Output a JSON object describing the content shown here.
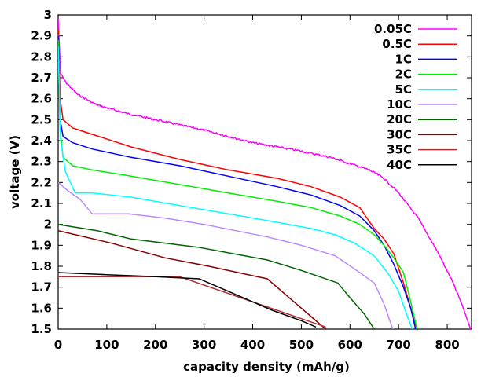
{
  "chart_data": {
    "type": "line",
    "title": "",
    "xlabel": "capacity density (mAh/g)",
    "ylabel": "voltage (V)",
    "xlim": [
      0,
      850
    ],
    "ylim": [
      1.5,
      3
    ],
    "xticks": [
      0,
      100,
      200,
      300,
      400,
      500,
      600,
      700,
      800
    ],
    "yticks": [
      1.5,
      1.6,
      1.7,
      1.8,
      1.9,
      2,
      2.1,
      2.2,
      2.3,
      2.4,
      2.5,
      2.6,
      2.7,
      2.8,
      2.9,
      3
    ],
    "xtick_labels": [
      "0",
      "100",
      "200",
      "300",
      "400",
      "500",
      "600",
      "700",
      "800"
    ],
    "ytick_labels": [
      "1.5",
      "1.6",
      "1.7",
      "1.8",
      "1.9",
      "2",
      "2.1",
      "2.2",
      "2.3",
      "2.4",
      "2.5",
      "2.6",
      "2.7",
      "2.8",
      "2.9",
      "3"
    ],
    "legend_position": "top-right",
    "grid": false,
    "series": [
      {
        "name": "0.05C",
        "color": "#ff00ff",
        "noisy": true,
        "points": [
          [
            0,
            2.98
          ],
          [
            5,
            2.72
          ],
          [
            15,
            2.68
          ],
          [
            40,
            2.62
          ],
          [
            80,
            2.57
          ],
          [
            140,
            2.53
          ],
          [
            200,
            2.5
          ],
          [
            300,
            2.45
          ],
          [
            400,
            2.39
          ],
          [
            450,
            2.37
          ],
          [
            500,
            2.35
          ],
          [
            560,
            2.32
          ],
          [
            600,
            2.29
          ],
          [
            640,
            2.26
          ],
          [
            670,
            2.22
          ],
          [
            700,
            2.15
          ],
          [
            740,
            2.03
          ],
          [
            780,
            1.87
          ],
          [
            810,
            1.73
          ],
          [
            830,
            1.62
          ],
          [
            848,
            1.5
          ]
        ]
      },
      {
        "name": "0.5C",
        "color": "#ff0000",
        "points": [
          [
            0,
            2.93
          ],
          [
            4,
            2.6
          ],
          [
            10,
            2.5
          ],
          [
            30,
            2.46
          ],
          [
            70,
            2.43
          ],
          [
            150,
            2.37
          ],
          [
            250,
            2.31
          ],
          [
            350,
            2.26
          ],
          [
            450,
            2.22
          ],
          [
            520,
            2.18
          ],
          [
            580,
            2.13
          ],
          [
            620,
            2.08
          ],
          [
            650,
            1.98
          ],
          [
            670,
            1.93
          ],
          [
            690,
            1.86
          ],
          [
            710,
            1.72
          ],
          [
            725,
            1.6
          ],
          [
            738,
            1.5
          ]
        ]
      },
      {
        "name": "1C",
        "color": "#0000ff",
        "points": [
          [
            0,
            2.9
          ],
          [
            4,
            2.5
          ],
          [
            10,
            2.42
          ],
          [
            30,
            2.39
          ],
          [
            70,
            2.36
          ],
          [
            150,
            2.32
          ],
          [
            250,
            2.28
          ],
          [
            350,
            2.23
          ],
          [
            450,
            2.18
          ],
          [
            520,
            2.14
          ],
          [
            580,
            2.09
          ],
          [
            620,
            2.04
          ],
          [
            650,
            1.97
          ],
          [
            670,
            1.9
          ],
          [
            690,
            1.81
          ],
          [
            710,
            1.7
          ],
          [
            725,
            1.6
          ],
          [
            735,
            1.5
          ]
        ]
      },
      {
        "name": "2C",
        "color": "#00ee00",
        "points": [
          [
            0,
            2.88
          ],
          [
            4,
            2.45
          ],
          [
            10,
            2.32
          ],
          [
            30,
            2.28
          ],
          [
            70,
            2.26
          ],
          [
            150,
            2.23
          ],
          [
            250,
            2.19
          ],
          [
            350,
            2.15
          ],
          [
            450,
            2.11
          ],
          [
            520,
            2.08
          ],
          [
            580,
            2.04
          ],
          [
            620,
            2.0
          ],
          [
            650,
            1.95
          ],
          [
            670,
            1.9
          ],
          [
            690,
            1.84
          ],
          [
            710,
            1.77
          ],
          [
            725,
            1.63
          ],
          [
            738,
            1.5
          ]
        ]
      },
      {
        "name": "5C",
        "color": "#00ffff",
        "points": [
          [
            0,
            2.85
          ],
          [
            5,
            2.4
          ],
          [
            15,
            2.25
          ],
          [
            35,
            2.15
          ],
          [
            70,
            2.15
          ],
          [
            150,
            2.13
          ],
          [
            250,
            2.09
          ],
          [
            350,
            2.05
          ],
          [
            450,
            2.01
          ],
          [
            520,
            1.98
          ],
          [
            570,
            1.95
          ],
          [
            610,
            1.91
          ],
          [
            650,
            1.85
          ],
          [
            680,
            1.76
          ],
          [
            700,
            1.68
          ],
          [
            715,
            1.58
          ],
          [
            728,
            1.5
          ]
        ]
      },
      {
        "name": "10C",
        "color": "#bb88ff",
        "points": [
          [
            0,
            2.2
          ],
          [
            20,
            2.16
          ],
          [
            45,
            2.12
          ],
          [
            70,
            2.05
          ],
          [
            145,
            2.05
          ],
          [
            220,
            2.03
          ],
          [
            300,
            2.0
          ],
          [
            430,
            1.94
          ],
          [
            500,
            1.9
          ],
          [
            570,
            1.85
          ],
          [
            620,
            1.77
          ],
          [
            650,
            1.72
          ],
          [
            670,
            1.62
          ],
          [
            688,
            1.5
          ]
        ]
      },
      {
        "name": "20C",
        "color": "#006400",
        "points": [
          [
            0,
            2.0
          ],
          [
            80,
            1.97
          ],
          [
            150,
            1.93
          ],
          [
            290,
            1.89
          ],
          [
            430,
            1.83
          ],
          [
            500,
            1.78
          ],
          [
            575,
            1.72
          ],
          [
            600,
            1.65
          ],
          [
            630,
            1.57
          ],
          [
            650,
            1.5
          ]
        ]
      },
      {
        "name": "30C",
        "color": "#880000",
        "points": [
          [
            0,
            1.97
          ],
          [
            110,
            1.91
          ],
          [
            220,
            1.84
          ],
          [
            310,
            1.8
          ],
          [
            430,
            1.74
          ],
          [
            480,
            1.64
          ],
          [
            520,
            1.56
          ],
          [
            550,
            1.5
          ]
        ]
      },
      {
        "name": "35C",
        "color": "#b03030",
        "points": [
          [
            0,
            1.75
          ],
          [
            100,
            1.75
          ],
          [
            250,
            1.75
          ],
          [
            300,
            1.71
          ],
          [
            400,
            1.63
          ],
          [
            500,
            1.55
          ],
          [
            550,
            1.51
          ]
        ]
      },
      {
        "name": "40C",
        "color": "#000000",
        "points": [
          [
            0,
            1.77
          ],
          [
            100,
            1.76
          ],
          [
            200,
            1.75
          ],
          [
            290,
            1.74
          ],
          [
            370,
            1.66
          ],
          [
            440,
            1.59
          ],
          [
            500,
            1.54
          ],
          [
            530,
            1.51
          ]
        ]
      }
    ]
  }
}
